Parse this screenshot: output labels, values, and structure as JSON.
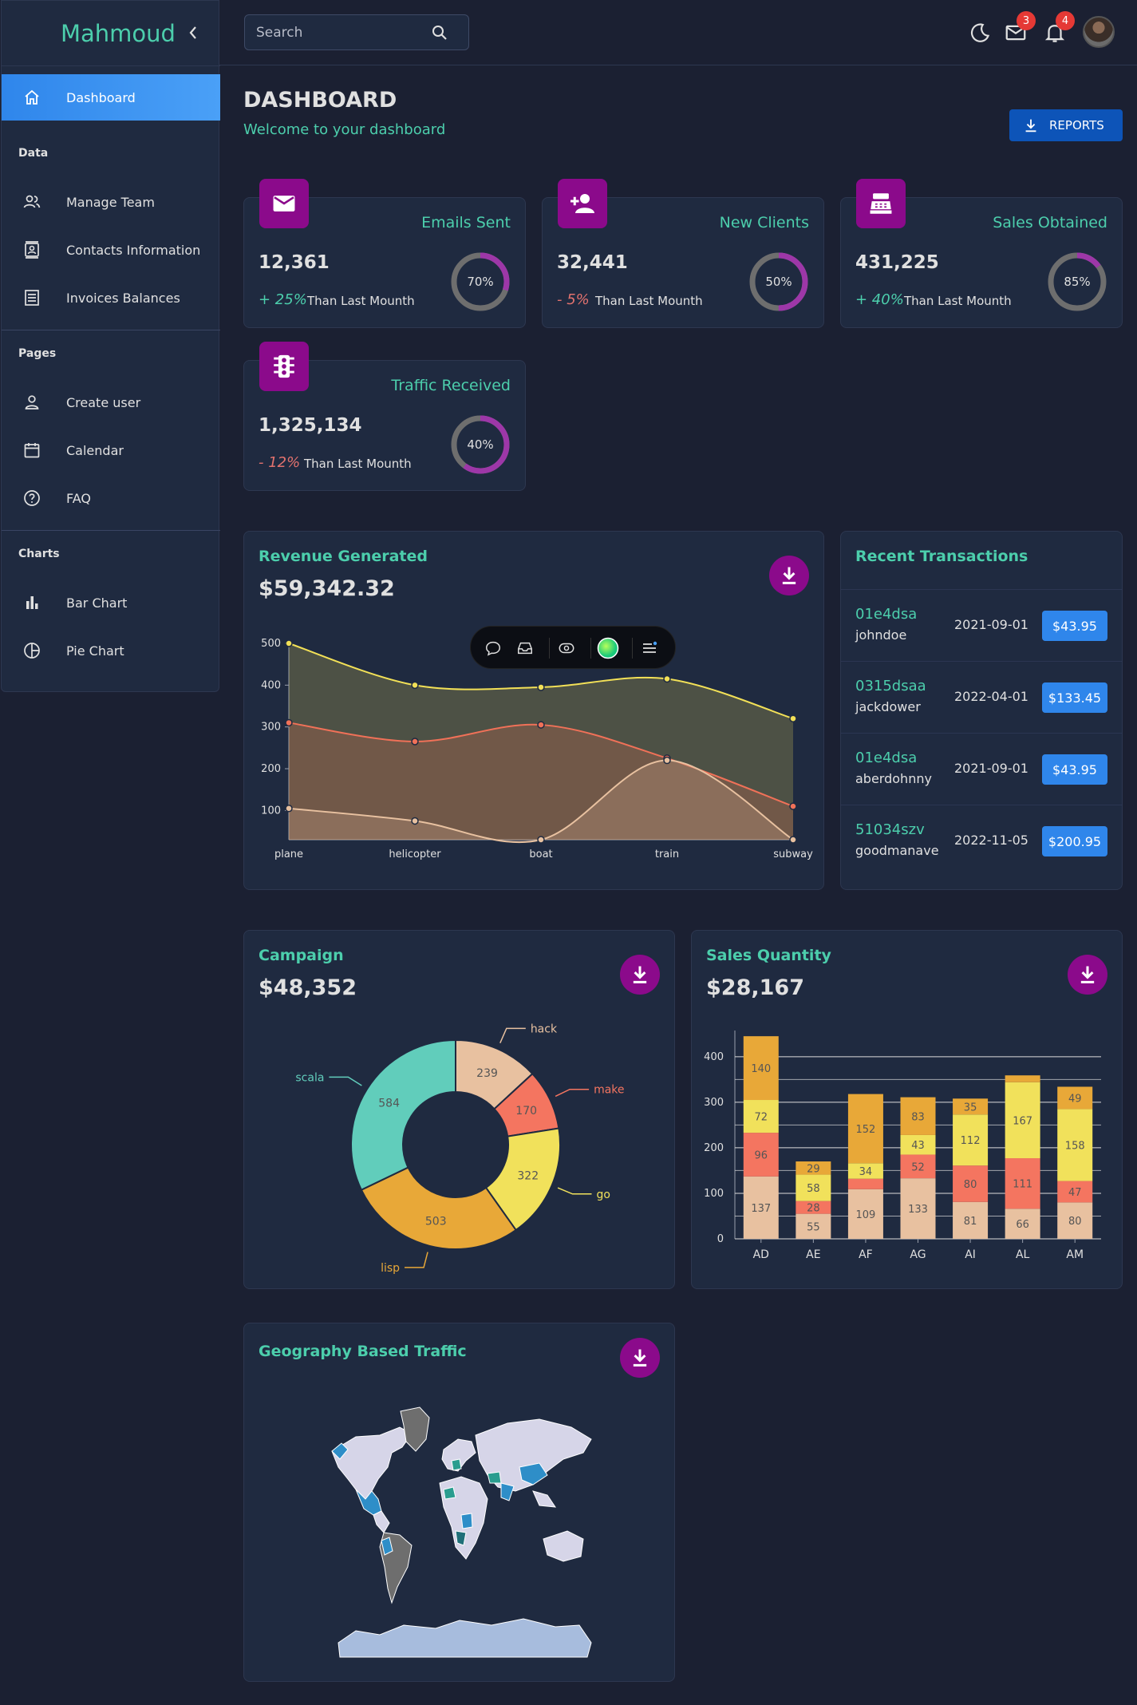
{
  "app": {
    "brand": "Mahmoud"
  },
  "search": {
    "placeholder": "Search"
  },
  "notifications": {
    "mail_count": "3",
    "bell_count": "4"
  },
  "sidebar": {
    "items": [
      {
        "label": "Dashboard",
        "icon": "home-icon",
        "active": true
      },
      {
        "label": "Manage Team",
        "icon": "people-icon"
      },
      {
        "label": "Contacts Information",
        "icon": "contacts-icon"
      },
      {
        "label": "Invoices Balances",
        "icon": "receipt-icon"
      },
      {
        "label": "Create user",
        "icon": "person-icon"
      },
      {
        "label": "Calendar",
        "icon": "calendar-icon"
      },
      {
        "label": "FAQ",
        "icon": "help-icon"
      },
      {
        "label": "Bar Chart",
        "icon": "bar-chart-icon"
      },
      {
        "label": "Pie Chart",
        "icon": "pie-chart-icon"
      }
    ],
    "sections": [
      "Data",
      "Pages",
      "Charts"
    ]
  },
  "header": {
    "title": "DASHBOARD",
    "subtitle": "Welcome to your dashboard",
    "reports_label": "REPORTS"
  },
  "stats": [
    {
      "title": "Emails Sent",
      "value": "12,361",
      "increase": "+ 25%",
      "note": "Than Last Mounth",
      "progress": 0.7,
      "progress_label": "70%",
      "icon": "email-icon"
    },
    {
      "title": "New Clients",
      "value": "32,441",
      "increase": "- 5%",
      "note": "Than Last Mounth",
      "progress": 0.5,
      "progress_label": "50%",
      "icon": "person-add-icon"
    },
    {
      "title": "Sales Obtained",
      "value": "431,225",
      "increase": "+ 40%",
      "note": "Than Last Mounth",
      "progress": 0.85,
      "progress_label": "85%",
      "icon": "cash-register-icon"
    },
    {
      "title": "Traffic Received",
      "value": "1,325,134",
      "increase": "- 12%",
      "note": "Than Last Mounth",
      "progress": 0.4,
      "progress_label": "40%",
      "icon": "traffic-light-icon"
    }
  ],
  "revenue": {
    "title": "Revenue Generated",
    "value": "$59,342.32"
  },
  "transactions": {
    "title": "Recent Transactions",
    "rows": [
      {
        "id": "01e4dsa",
        "user": "johndoe",
        "date": "2021-09-01",
        "cost": "$43.95"
      },
      {
        "id": "0315dsaa",
        "user": "jackdower",
        "date": "2022-04-01",
        "cost": "$133.45"
      },
      {
        "id": "01e4dsa",
        "user": "aberdohnny",
        "date": "2021-09-01",
        "cost": "$43.95"
      },
      {
        "id": "51034szv",
        "user": "goodmanave",
        "date": "2022-11-05",
        "cost": "$200.95"
      }
    ]
  },
  "campaign": {
    "title": "Campaign",
    "value": "$48,352"
  },
  "sales": {
    "title": "Sales Quantity",
    "value": "$28,167"
  },
  "geography": {
    "title": "Geography Based Traffic"
  },
  "chart_data": [
    {
      "type": "area",
      "categories": [
        "plane",
        "helicopter",
        "boat",
        "train",
        "subway"
      ],
      "series": [
        {
          "values": [
            500,
            400,
            395,
            415,
            320
          ],
          "color": "#f2e057"
        },
        {
          "values": [
            310,
            265,
            305,
            225,
            110
          ],
          "color": "#f07158"
        },
        {
          "values": [
            105,
            75,
            30,
            220,
            30
          ],
          "color": "#e8c1a0"
        }
      ],
      "yticks": [
        100,
        200,
        300,
        400,
        500
      ],
      "ylim": [
        30,
        500
      ]
    },
    {
      "type": "pie",
      "labels": [
        "hack",
        "make",
        "go",
        "lisp",
        "scala"
      ],
      "values": [
        239,
        170,
        322,
        503,
        584
      ],
      "colors": [
        "#e8c1a0",
        "#f47560",
        "#f1e15b",
        "#e8a838",
        "#61cdbb"
      ]
    },
    {
      "type": "bar",
      "categories": [
        "AD",
        "AE",
        "AF",
        "AG",
        "AI",
        "AL",
        "AM"
      ],
      "series": [
        {
          "values": [
            137,
            55,
            109,
            133,
            81,
            66,
            80
          ],
          "color": "#e8c1a0"
        },
        {
          "values": [
            96,
            28,
            23,
            52,
            80,
            111,
            47
          ],
          "color": "#f47560"
        },
        {
          "values": [
            72,
            58,
            34,
            43,
            112,
            167,
            158
          ],
          "color": "#f1e15b"
        },
        {
          "values": [
            140,
            29,
            152,
            83,
            35,
            15,
            49
          ],
          "color": "#e8a838"
        }
      ],
      "shown_labels": [
        [
          137,
          55,
          109,
          133,
          81,
          66,
          80
        ],
        [
          96,
          28,
          null,
          52,
          80,
          111,
          47
        ],
        [
          72,
          58,
          34,
          43,
          112,
          167,
          158
        ],
        [
          140,
          29,
          152,
          83,
          35,
          null,
          49
        ]
      ],
      "yticks": [
        0,
        100,
        200,
        300,
        400
      ],
      "ylim": [
        0,
        440
      ]
    }
  ]
}
